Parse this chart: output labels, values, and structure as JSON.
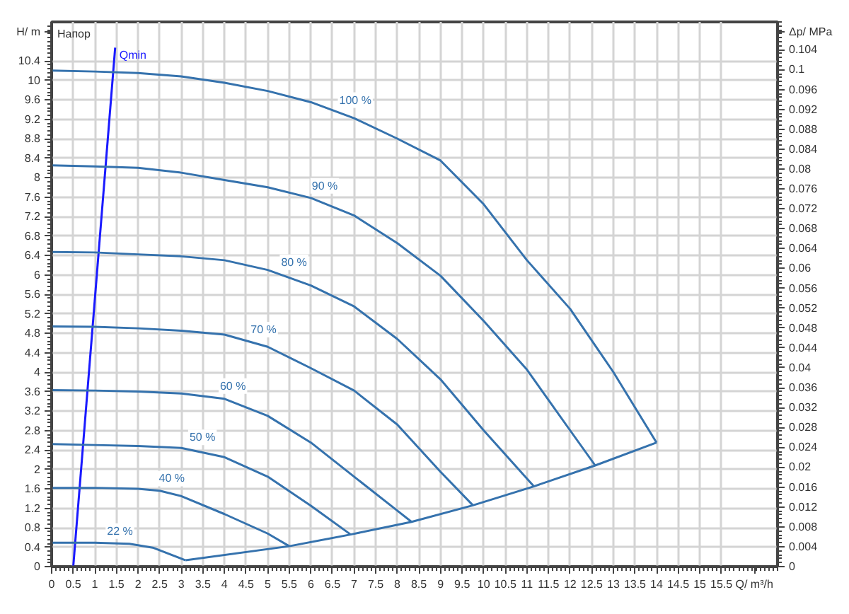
{
  "chart_data": {
    "type": "line",
    "title": "Напор",
    "xlabel": "Q/ m³/h",
    "ylabel": "H/ m",
    "y2label": "Δp/ MPa",
    "xlim": [
      0,
      16.8
    ],
    "ylim": [
      0,
      11.2
    ],
    "y2lim": [
      0,
      0.1096
    ],
    "xticks": [
      0,
      0.5,
      1,
      1.5,
      2,
      2.5,
      3,
      3.5,
      4,
      4.5,
      5,
      5.5,
      6,
      6.5,
      7,
      7.5,
      8,
      8.5,
      9,
      9.5,
      10,
      10.5,
      11,
      11.5,
      12,
      12.5,
      13,
      13.5,
      14,
      14.5,
      15,
      15.5
    ],
    "yticks": [
      0,
      0.4,
      0.8,
      1.2,
      1.6,
      2,
      2.4,
      2.8,
      3.2,
      3.6,
      4,
      4.4,
      4.8,
      5.2,
      5.6,
      6,
      6.4,
      6.8,
      7.2,
      7.6,
      8,
      8.4,
      8.8,
      9.2,
      9.6,
      10,
      10.4
    ],
    "y2ticks": [
      0,
      0.004,
      0.008,
      0.012,
      0.016,
      0.02,
      0.024,
      0.028,
      0.032,
      0.036,
      0.04,
      0.044,
      0.048,
      0.052,
      0.056,
      0.06,
      0.064,
      0.068,
      0.072,
      0.076,
      0.08,
      0.084,
      0.088,
      0.092,
      0.096,
      0.1,
      0.104
    ],
    "grid": true,
    "line_style": "solid",
    "series": [
      {
        "name": "Qmin",
        "color": "#1a1aff",
        "x": [
          0.5,
          1.47
        ],
        "values": [
          0,
          10.67
        ]
      },
      {
        "name": "100 %",
        "color": "#3572ad",
        "x": [
          0,
          1,
          2,
          3,
          4,
          5,
          6,
          7,
          8,
          9,
          10,
          11,
          12,
          13,
          14
        ],
        "values": [
          10.2,
          10.18,
          10.15,
          10.08,
          9.95,
          9.78,
          9.55,
          9.22,
          8.8,
          8.35,
          7.45,
          6.3,
          5.3,
          4.0,
          2.55
        ]
      },
      {
        "name": "90 %",
        "color": "#3572ad",
        "x": [
          0,
          1,
          2,
          3,
          4,
          5,
          6,
          7,
          8,
          9,
          10,
          11,
          12,
          12.58
        ],
        "values": [
          8.25,
          8.23,
          8.2,
          8.1,
          7.95,
          7.8,
          7.58,
          7.22,
          6.65,
          5.98,
          5.05,
          4.05,
          2.8,
          2.08
        ]
      },
      {
        "name": "80 %",
        "color": "#3572ad",
        "x": [
          0,
          1,
          2,
          3,
          4,
          5,
          6,
          7,
          8,
          9,
          10,
          11.16
        ],
        "values": [
          6.47,
          6.46,
          6.42,
          6.38,
          6.3,
          6.1,
          5.78,
          5.35,
          4.68,
          3.85,
          2.8,
          1.65
        ]
      },
      {
        "name": "70 %",
        "color": "#3572ad",
        "x": [
          0,
          1,
          2,
          3,
          4,
          5,
          6,
          7,
          8,
          9,
          9.75
        ],
        "values": [
          4.94,
          4.93,
          4.9,
          4.85,
          4.77,
          4.52,
          4.08,
          3.62,
          2.92,
          1.95,
          1.26
        ]
      },
      {
        "name": "60 %",
        "color": "#3572ad",
        "x": [
          0,
          1,
          2,
          3,
          4,
          5,
          6,
          7,
          8,
          8.33
        ],
        "values": [
          3.63,
          3.62,
          3.6,
          3.56,
          3.45,
          3.1,
          2.55,
          1.85,
          1.15,
          0.92
        ]
      },
      {
        "name": "50 %",
        "color": "#3572ad",
        "x": [
          0,
          1,
          2,
          3,
          4,
          5,
          6,
          6.92
        ],
        "values": [
          2.52,
          2.5,
          2.48,
          2.44,
          2.25,
          1.85,
          1.25,
          0.66
        ]
      },
      {
        "name": "40 %",
        "color": "#3572ad",
        "x": [
          0,
          1,
          2,
          2.5,
          3,
          4,
          5,
          5.5
        ],
        "values": [
          1.62,
          1.62,
          1.6,
          1.56,
          1.45,
          1.08,
          0.68,
          0.42
        ]
      },
      {
        "name": "22 %",
        "color": "#3572ad",
        "x": [
          0,
          1,
          1.8,
          2.34,
          3.1
        ],
        "values": [
          0.49,
          0.49,
          0.47,
          0.39,
          0.13
        ]
      },
      {
        "color": "#3572ad",
        "x": [
          3.1,
          5.5,
          6.92,
          8.33,
          9.75,
          11.16,
          12.58,
          14
        ],
        "values": [
          0.13,
          0.42,
          0.66,
          0.92,
          1.26,
          1.65,
          2.08,
          2.55
        ]
      }
    ]
  }
}
